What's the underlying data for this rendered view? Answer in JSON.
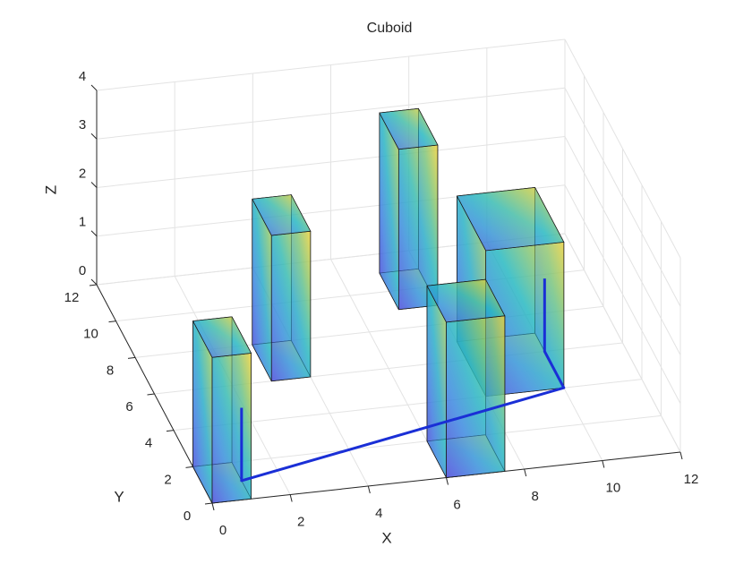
{
  "chart_data": {
    "type": "cuboid3d",
    "title": "Cuboid",
    "xlabel": "X",
    "ylabel": "Y",
    "zlabel": "Z",
    "xlim": [
      0,
      12
    ],
    "ylim": [
      0,
      12
    ],
    "zlim": [
      0,
      4
    ],
    "xticks": [
      0,
      2,
      4,
      6,
      8,
      10,
      12
    ],
    "yticks": [
      0,
      2,
      4,
      6,
      8,
      10,
      12
    ],
    "zticks": [
      0,
      1,
      2,
      3,
      4
    ],
    "grid": true,
    "cuboids": [
      {
        "x": [
          0,
          1
        ],
        "y": [
          0,
          2
        ],
        "z": [
          0,
          3
        ]
      },
      {
        "x": [
          3,
          4
        ],
        "y": [
          6,
          8
        ],
        "z": [
          0,
          3
        ]
      },
      {
        "x": [
          7,
          8
        ],
        "y": [
          9,
          11
        ],
        "z": [
          0,
          3.3
        ]
      },
      {
        "x": [
          8,
          10
        ],
        "y": [
          4,
          7
        ],
        "z": [
          0,
          3
        ]
      },
      {
        "x": [
          6,
          7.5
        ],
        "y": [
          0,
          2
        ],
        "z": [
          0,
          3.2
        ]
      }
    ],
    "path": {
      "color": "#1a2fd6",
      "x": [
        1,
        1,
        10,
        10,
        10
      ],
      "y": [
        1,
        1,
        4,
        6,
        6
      ],
      "z": [
        1.5,
        0,
        0,
        0,
        1.5
      ]
    }
  }
}
